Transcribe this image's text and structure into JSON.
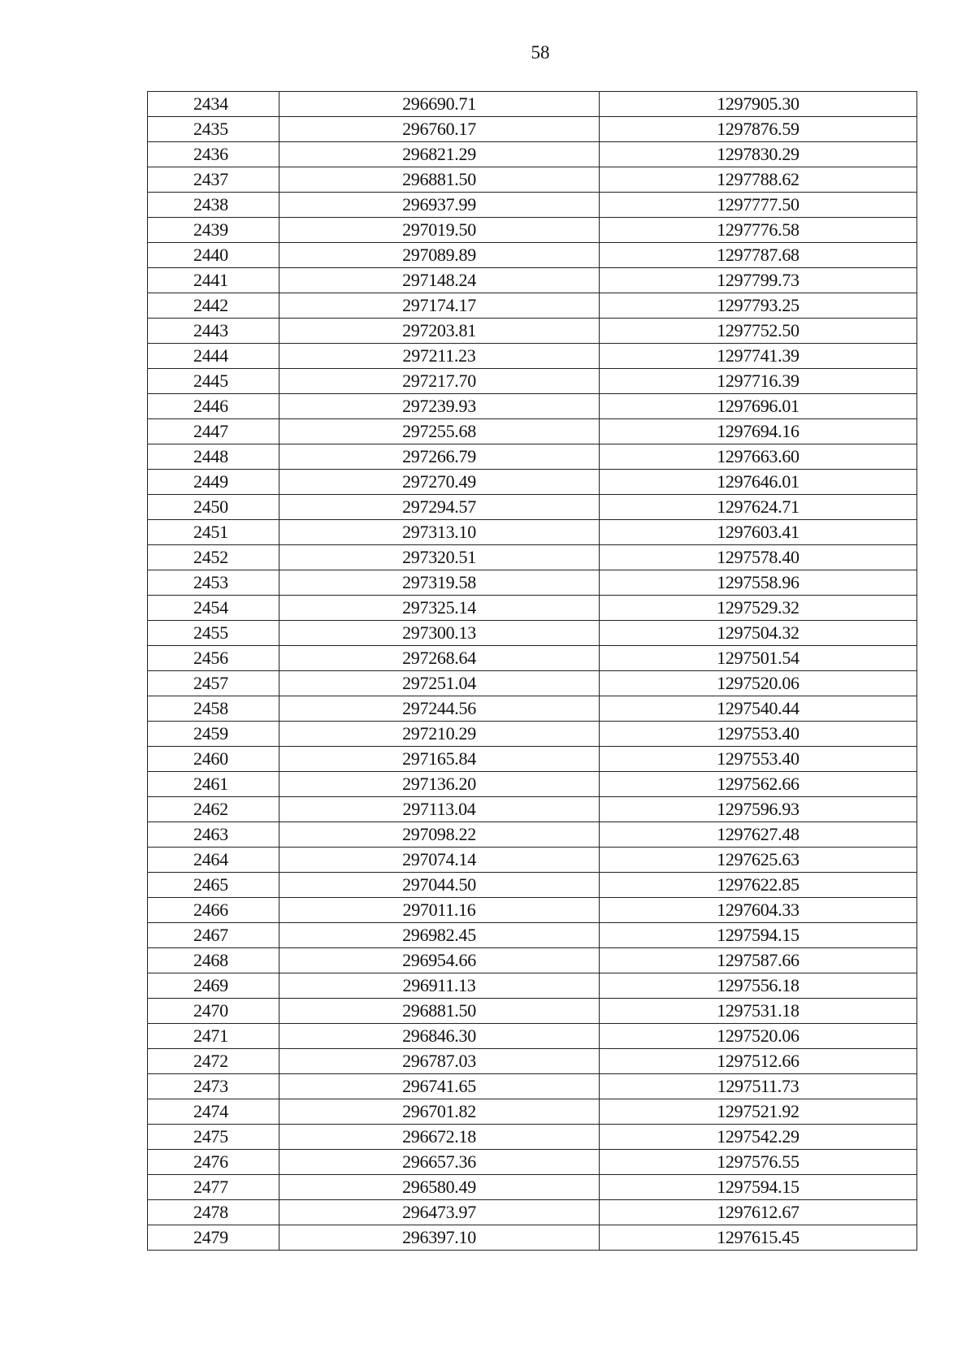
{
  "page_number": "58",
  "rows": [
    [
      "2434",
      "296690.71",
      "1297905.30"
    ],
    [
      "2435",
      "296760.17",
      "1297876.59"
    ],
    [
      "2436",
      "296821.29",
      "1297830.29"
    ],
    [
      "2437",
      "296881.50",
      "1297788.62"
    ],
    [
      "2438",
      "296937.99",
      "1297777.50"
    ],
    [
      "2439",
      "297019.50",
      "1297776.58"
    ],
    [
      "2440",
      "297089.89",
      "1297787.68"
    ],
    [
      "2441",
      "297148.24",
      "1297799.73"
    ],
    [
      "2442",
      "297174.17",
      "1297793.25"
    ],
    [
      "2443",
      "297203.81",
      "1297752.50"
    ],
    [
      "2444",
      "297211.23",
      "1297741.39"
    ],
    [
      "2445",
      "297217.70",
      "1297716.39"
    ],
    [
      "2446",
      "297239.93",
      "1297696.01"
    ],
    [
      "2447",
      "297255.68",
      "1297694.16"
    ],
    [
      "2448",
      "297266.79",
      "1297663.60"
    ],
    [
      "2449",
      "297270.49",
      "1297646.01"
    ],
    [
      "2450",
      "297294.57",
      "1297624.71"
    ],
    [
      "2451",
      "297313.10",
      "1297603.41"
    ],
    [
      "2452",
      "297320.51",
      "1297578.40"
    ],
    [
      "2453",
      "297319.58",
      "1297558.96"
    ],
    [
      "2454",
      "297325.14",
      "1297529.32"
    ],
    [
      "2455",
      "297300.13",
      "1297504.32"
    ],
    [
      "2456",
      "297268.64",
      "1297501.54"
    ],
    [
      "2457",
      "297251.04",
      "1297520.06"
    ],
    [
      "2458",
      "297244.56",
      "1297540.44"
    ],
    [
      "2459",
      "297210.29",
      "1297553.40"
    ],
    [
      "2460",
      "297165.84",
      "1297553.40"
    ],
    [
      "2461",
      "297136.20",
      "1297562.66"
    ],
    [
      "2462",
      "297113.04",
      "1297596.93"
    ],
    [
      "2463",
      "297098.22",
      "1297627.48"
    ],
    [
      "2464",
      "297074.14",
      "1297625.63"
    ],
    [
      "2465",
      "297044.50",
      "1297622.85"
    ],
    [
      "2466",
      "297011.16",
      "1297604.33"
    ],
    [
      "2467",
      "296982.45",
      "1297594.15"
    ],
    [
      "2468",
      "296954.66",
      "1297587.66"
    ],
    [
      "2469",
      "296911.13",
      "1297556.18"
    ],
    [
      "2470",
      "296881.50",
      "1297531.18"
    ],
    [
      "2471",
      "296846.30",
      "1297520.06"
    ],
    [
      "2472",
      "296787.03",
      "1297512.66"
    ],
    [
      "2473",
      "296741.65",
      "1297511.73"
    ],
    [
      "2474",
      "296701.82",
      "1297521.92"
    ],
    [
      "2475",
      "296672.18",
      "1297542.29"
    ],
    [
      "2476",
      "296657.36",
      "1297576.55"
    ],
    [
      "2477",
      "296580.49",
      "1297594.15"
    ],
    [
      "2478",
      "296473.97",
      "1297612.67"
    ],
    [
      "2479",
      "296397.10",
      "1297615.45"
    ]
  ]
}
